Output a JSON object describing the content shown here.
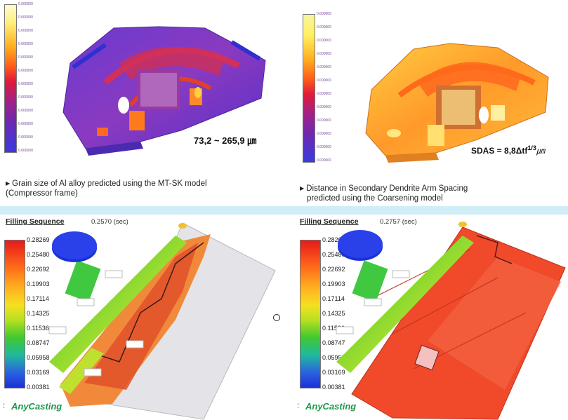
{
  "top_left": {
    "legend_values": [
      "0.000000",
      "0.000000",
      "0.000000",
      "0.000000",
      "0.000000",
      "0.000000",
      "0.000000",
      "0.000000",
      "0.000000",
      "0.000000",
      "0.000000",
      "0.000000"
    ],
    "range_text": "73,2 ~ 265,9 ㎛",
    "caption_lines": [
      "Grain size of Al alloy predicted using the MT-SK model",
      "(Compressor frame)"
    ]
  },
  "top_right": {
    "legend_values": [
      "0.000000",
      "0.000000",
      "0.000000",
      "0.000000",
      "0.000000",
      "0.000000",
      "0.000000",
      "0.000000",
      "0.000000",
      "0.000000",
      "0.000000",
      "0.000000"
    ],
    "formula_text": "SDAS = 8,8Δtf",
    "formula_exp": "1/3",
    "formula_unit": "㎛",
    "caption_lines": [
      "Distance in Secondary Dendrite Arm Spacing",
      "predicted using the Coarsening model"
    ]
  },
  "bottom_left": {
    "title": "Filling Sequence",
    "time": "0.2570 (sec)",
    "legend_values": [
      "0.28269",
      "0.25480",
      "0.22692",
      "0.19903",
      "0.17114",
      "0.14325",
      "0.11536",
      "0.08747",
      "0.05958",
      "0.03169",
      "0.00381"
    ],
    "brand": "AnyCasting"
  },
  "bottom_right": {
    "title": "Filling Sequence",
    "time": "0.2757 (sec)",
    "legend_values": [
      "0.28269",
      "0.25480",
      "0.22692",
      "0.19903",
      "0.17114",
      "0.14325",
      "0.11536",
      "0.08747",
      "0.05958",
      "0.03169",
      "0.00381"
    ],
    "brand": "AnyCasting"
  },
  "colors": {
    "divider": "#cfeef7",
    "brand_green": "#1a9a4a"
  }
}
